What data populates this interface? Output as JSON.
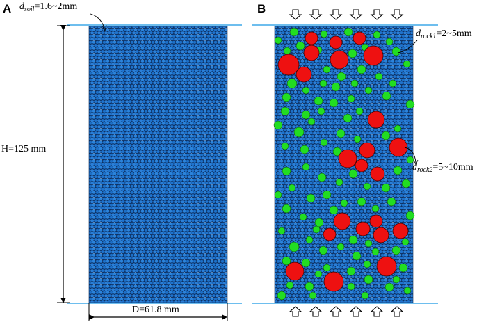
{
  "panels": {
    "a": {
      "letter": "A"
    },
    "b": {
      "letter": "B"
    }
  },
  "labels": {
    "d_soil_symbol": "d",
    "d_soil_sub": "soil",
    "d_soil_value": "=1.6~2mm",
    "height": "H=125 mm",
    "diameter": "D=61.8 mm",
    "d_rock1_symbol": "d",
    "d_rock1_sub": "rock1",
    "d_rock1_value": "=2~5mm",
    "d_rock2_symbol": "d",
    "d_rock2_sub": "rock2",
    "d_rock2_value": "=5~10mm"
  },
  "colors": {
    "soil_particle": "#1f77d4",
    "soil_outline": "#0b2a55",
    "rock_small": "#22dd22",
    "rock_large": "#ee1111",
    "boundary_line": "#3fa9e8"
  },
  "arrow_icons": "load-arrow-icon"
}
